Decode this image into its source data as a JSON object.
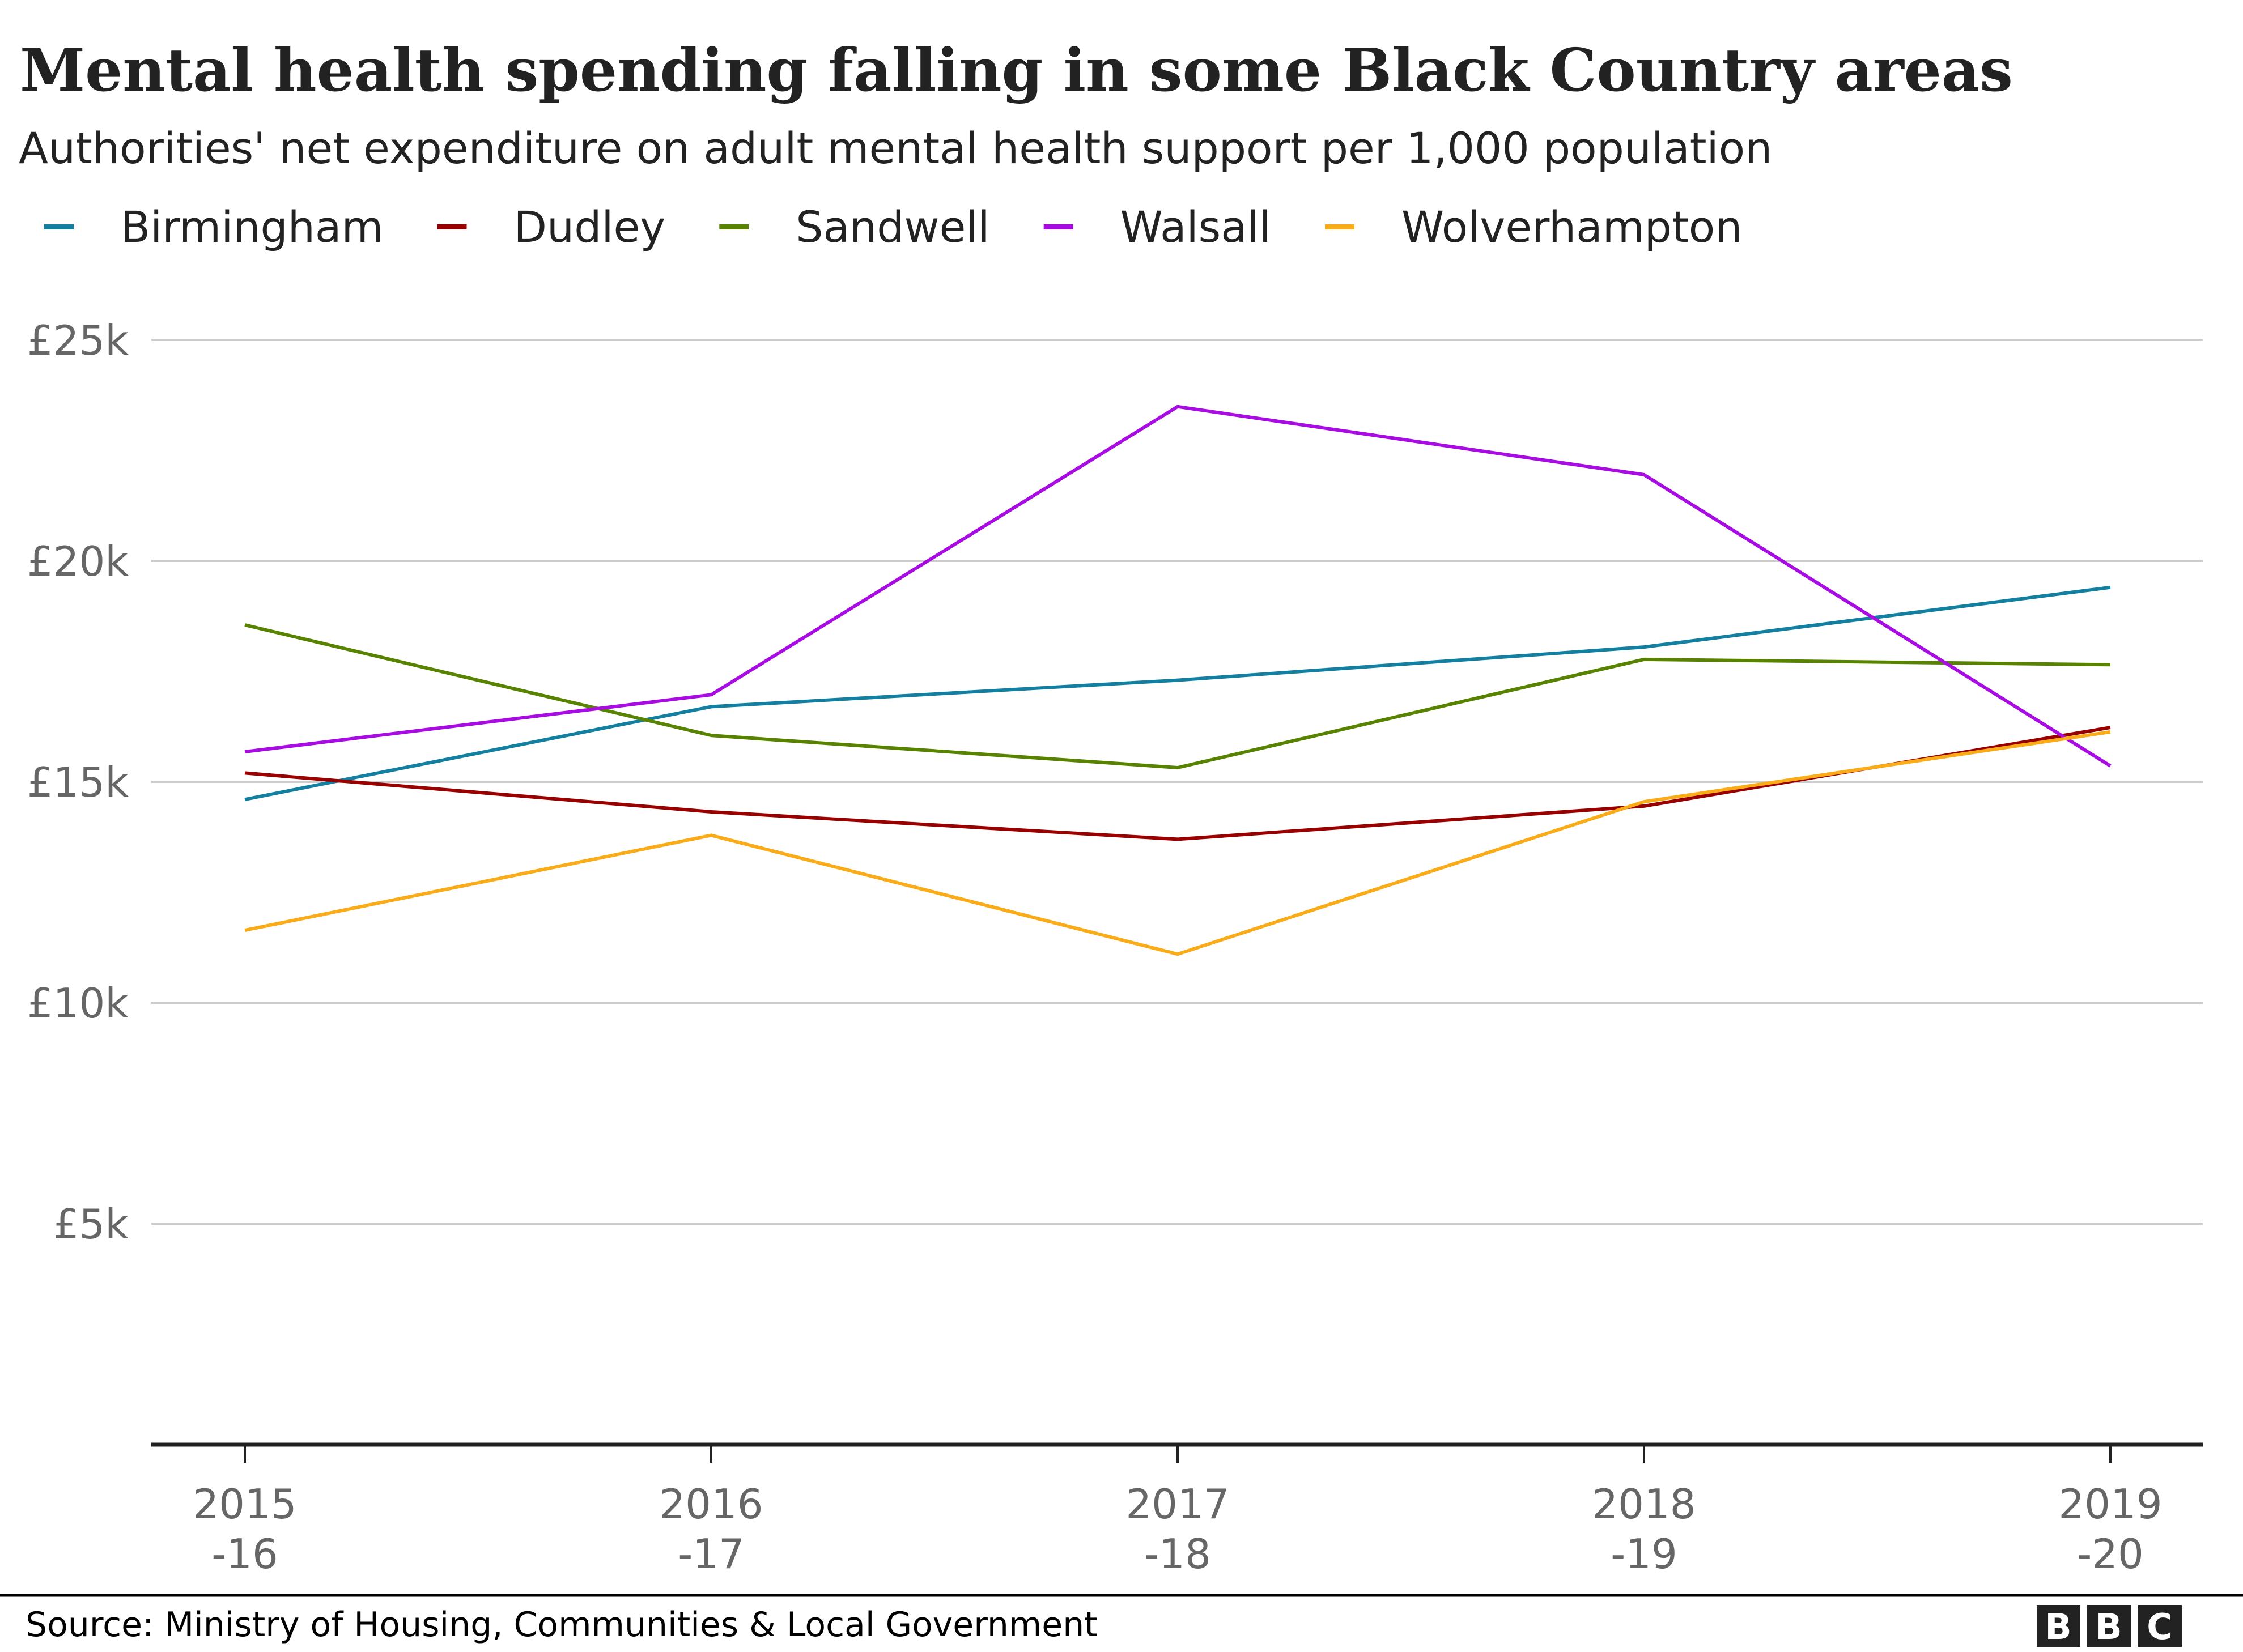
{
  "chart_data": {
    "type": "line",
    "title": "Mental health spending falling in some Black Country areas",
    "subtitle": "Authorities' net expenditure on adult mental health support per 1,000 population",
    "xlabel": "",
    "ylabel": "",
    "categories": [
      {
        "line1": "2015",
        "line2": "-16"
      },
      {
        "line1": "2016",
        "line2": "-17"
      },
      {
        "line1": "2017",
        "line2": "-18"
      },
      {
        "line1": "2018",
        "line2": "-19"
      },
      {
        "line1": "2019",
        "line2": "-20"
      }
    ],
    "ylim": [
      0,
      25000
    ],
    "yticks": [
      {
        "value": 5000,
        "label": "£5k"
      },
      {
        "value": 10000,
        "label": "£10k"
      },
      {
        "value": 15000,
        "label": "£15k"
      },
      {
        "value": 20000,
        "label": "£20k"
      },
      {
        "value": 25000,
        "label": "£25k"
      }
    ],
    "grid": true,
    "legend_position": "top-left",
    "series": [
      {
        "name": "Birmingham",
        "color": "#1380A1",
        "values": [
          14600,
          16700,
          17300,
          18050,
          19400
        ]
      },
      {
        "name": "Dudley",
        "color": "#990000",
        "values": [
          15200,
          14320,
          13700,
          14450,
          16230
        ]
      },
      {
        "name": "Sandwell",
        "color": "#588300",
        "values": [
          18550,
          16050,
          15320,
          17770,
          17650
        ]
      },
      {
        "name": "Walsall",
        "color": "#A80CE3",
        "values": [
          15680,
          16970,
          23490,
          21950,
          15360
        ]
      },
      {
        "name": "Wolverhampton",
        "color": "#FAAB18",
        "values": [
          11640,
          13790,
          11100,
          14550,
          16130
        ]
      }
    ]
  },
  "footer": {
    "source": "Source: Ministry of Housing, Communities & Local Government",
    "logo_letters": [
      "B",
      "B",
      "C"
    ]
  }
}
